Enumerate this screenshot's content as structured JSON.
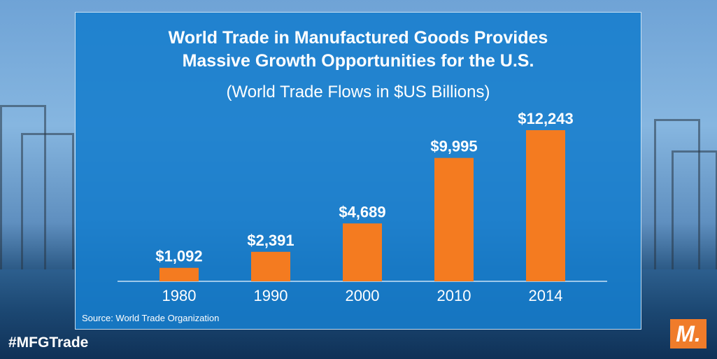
{
  "colors": {
    "bar": "#f47b20",
    "panel": "#1a7dcd",
    "text": "#ffffff",
    "axis": "#9dc8ea"
  },
  "hashtag": "#MFGTrade",
  "logo_text": "M.",
  "chart_data": {
    "type": "bar",
    "title": "World Trade in Manufactured Goods Provides\nMassive Growth Opportunities for the U.S.",
    "subtitle": "(World Trade Flows in $US Billions)",
    "categories": [
      "1980",
      "1990",
      "2000",
      "2010",
      "2014"
    ],
    "values": [
      1092,
      2391,
      4689,
      9995,
      12243
    ],
    "data_labels": [
      "$1,092",
      "$2,391",
      "$4,689",
      "$9,995",
      "$12,243"
    ],
    "xlabel": "",
    "ylabel": "",
    "ylim": [
      0,
      12243
    ],
    "grid": false,
    "source": "Source: World Trade Organization"
  }
}
